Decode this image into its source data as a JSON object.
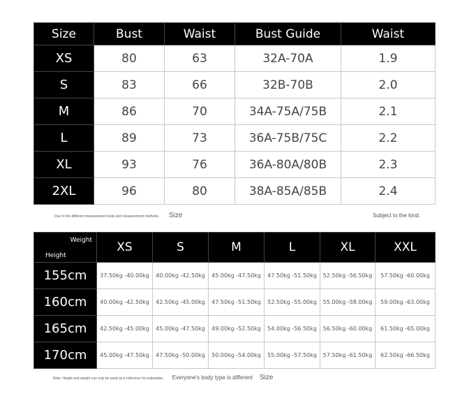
{
  "bust_table": {
    "headers": [
      "Size",
      "Bust",
      "Waist",
      "Bust Guide",
      "Waist"
    ],
    "rows": [
      [
        "XS",
        "80",
        "63",
        "32A-70A",
        "1.9"
      ],
      [
        "S",
        "83",
        "66",
        "32B-70B",
        "2.0"
      ],
      [
        "M",
        "86",
        "70",
        "34A-75A/75B",
        "2.1"
      ],
      [
        "L",
        "89",
        "73",
        "36A-75B/75C",
        "2.2"
      ],
      [
        "XL",
        "93",
        "76",
        "36A-80A/80B",
        "2.3"
      ],
      [
        "2XL",
        "96",
        "80",
        "38A-85A/85B",
        "2.4"
      ]
    ]
  },
  "notes1": {
    "left": "Due to the different measurement tools and measurement methods,",
    "mid": "Size",
    "right": "Subject to the kind."
  },
  "weight_table": {
    "corner_top": "Weight",
    "corner_bottom": "Height",
    "sizes": [
      "XS",
      "S",
      "M",
      "L",
      "XL",
      "XXL"
    ],
    "rows": [
      {
        "height": "155cm",
        "values": [
          "37.50kg -40.00kg",
          "40.00kg -42.50kg",
          "45.00kg -47.50kg",
          "47.50kg -51.50kg",
          "52.50kg -56.50kg",
          "57.50kg -60.00kg"
        ]
      },
      {
        "height": "160cm",
        "values": [
          "40.00kg -42.50kg",
          "42.50kg -45.00kg",
          "47.50kg -51.50kg",
          "52.50kg -55.00kg",
          "55.00kg -58.00kg",
          "59.00kg -63.00kg"
        ]
      },
      {
        "height": "165cm",
        "values": [
          "42.50kg -45.00kg",
          "45.00kg -47.50kg",
          "49.00kg -52.50kg",
          "54.00kg -56.50kg",
          "56.50kg -60.00kg",
          "61.50kg -65.00kg"
        ]
      },
      {
        "height": "170cm",
        "values": [
          "45.00kg -47.50kg",
          "47.50kg -50.00kg",
          "50.00kg -54.00kg",
          "55.00kg -57.50kg",
          "57.50kg -61.50kg",
          "62.50kg -66.50kg"
        ]
      }
    ]
  },
  "notes2": {
    "left": "Note: Height and weight can only be used as a reference for estimation,",
    "mid": "Everyone's body type is different",
    "right": "Size"
  }
}
